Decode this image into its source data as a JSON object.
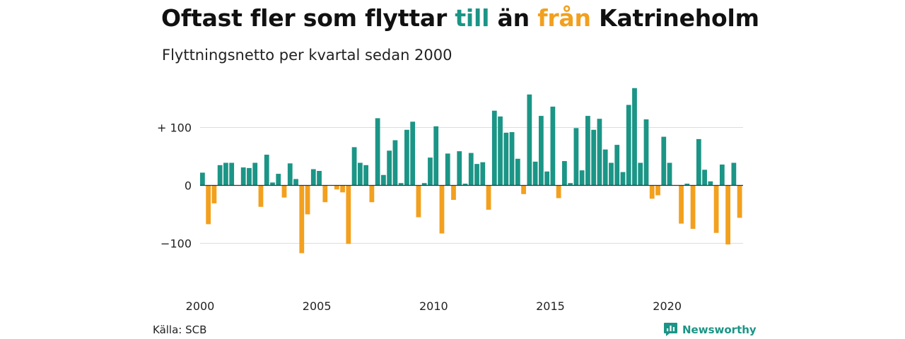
{
  "title": {
    "part1": "Oftast fler som flyttar ",
    "pos_word": "till",
    "part2": " än ",
    "neg_word": "från",
    "part3": " Katrineholm"
  },
  "subtitle": "Flyttningsnetto per kvartal sedan 2000",
  "source": "Källa: SCB",
  "logo_text": "Newsworthy",
  "colors": {
    "positive": "#1b9586",
    "negative": "#f2a01e",
    "grid": "#dddddd",
    "zero_line": "#333333"
  },
  "chart_data": {
    "type": "bar",
    "ylim": [
      -160,
      170
    ],
    "yticks": [
      {
        "value": 100,
        "label": "+ 100"
      },
      {
        "value": 0,
        "label": "0"
      },
      {
        "value": -100,
        "label": "−100"
      }
    ],
    "xticks": [
      {
        "value": 2000,
        "label": "2000"
      },
      {
        "value": 2005,
        "label": "2005"
      },
      {
        "value": 2010,
        "label": "2010"
      },
      {
        "value": 2015,
        "label": "2015"
      },
      {
        "value": 2020,
        "label": "2020"
      }
    ],
    "grid": true,
    "start_year": 2000,
    "values": [
      22,
      -67,
      -31,
      35,
      39,
      39,
      0,
      31,
      30,
      39,
      -37,
      53,
      5,
      20,
      -21,
      38,
      11,
      -117,
      -50,
      28,
      25,
      -29,
      0,
      -7,
      -12,
      -101,
      66,
      39,
      35,
      -29,
      116,
      18,
      60,
      78,
      4,
      96,
      110,
      -55,
      4,
      48,
      102,
      -83,
      55,
      -25,
      59,
      3,
      56,
      37,
      40,
      -42,
      129,
      119,
      91,
      92,
      46,
      -15,
      157,
      41,
      120,
      24,
      136,
      -22,
      42,
      4,
      99,
      26,
      120,
      96,
      115,
      62,
      39,
      70,
      23,
      139,
      168,
      39,
      114,
      -23,
      -17,
      84,
      39,
      0,
      -66,
      3,
      -75,
      80,
      27,
      7,
      -82,
      36,
      -102,
      39,
      -56
    ]
  }
}
